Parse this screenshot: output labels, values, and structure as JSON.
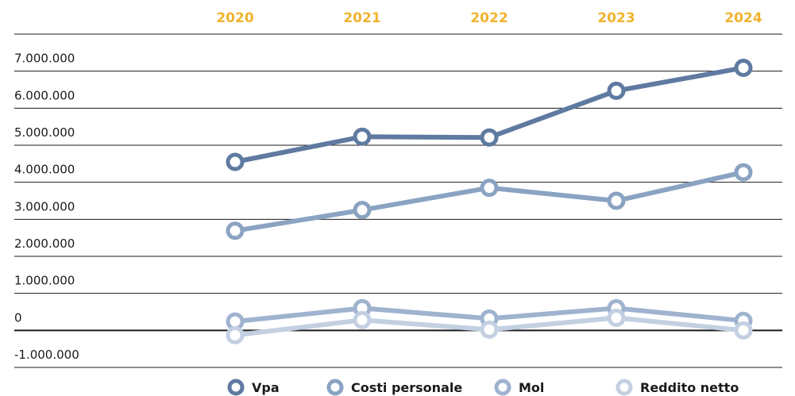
{
  "chart_data": {
    "type": "line",
    "categories": [
      "2020",
      "2021",
      "2022",
      "2023",
      "2024"
    ],
    "series": [
      {
        "name": "Vpa",
        "color": "#5f7aa0",
        "values": [
          4550000,
          5230000,
          5210000,
          6470000,
          7090000
        ]
      },
      {
        "name": "Costi personale",
        "color": "#8aa3c2",
        "values": [
          2690000,
          3250000,
          3850000,
          3500000,
          4270000
        ]
      },
      {
        "name": "Mol",
        "color": "#9fb3cf",
        "values": [
          240000,
          600000,
          320000,
          600000,
          260000
        ]
      },
      {
        "name": "Reddito netto",
        "color": "#c3d0e2",
        "values": [
          -130000,
          280000,
          20000,
          340000,
          0
        ]
      }
    ],
    "ylim": [
      -1000000,
      8000000
    ],
    "yticks": [
      {
        "value": -1000000,
        "label": "-1.000.000"
      },
      0,
      {
        "value": 1000000,
        "label": "1.000.000"
      },
      {
        "value": 2000000,
        "label": "2.000.000"
      },
      {
        "value": 3000000,
        "label": "3.000.000"
      },
      {
        "value": 4000000,
        "label": "4.000.000"
      },
      {
        "value": 5000000,
        "label": "5.000.000"
      },
      {
        "value": 6000000,
        "label": "6.000.000"
      },
      {
        "value": 7000000,
        "label": "7.000.000"
      }
    ],
    "grid": true,
    "legend": "bottom"
  }
}
